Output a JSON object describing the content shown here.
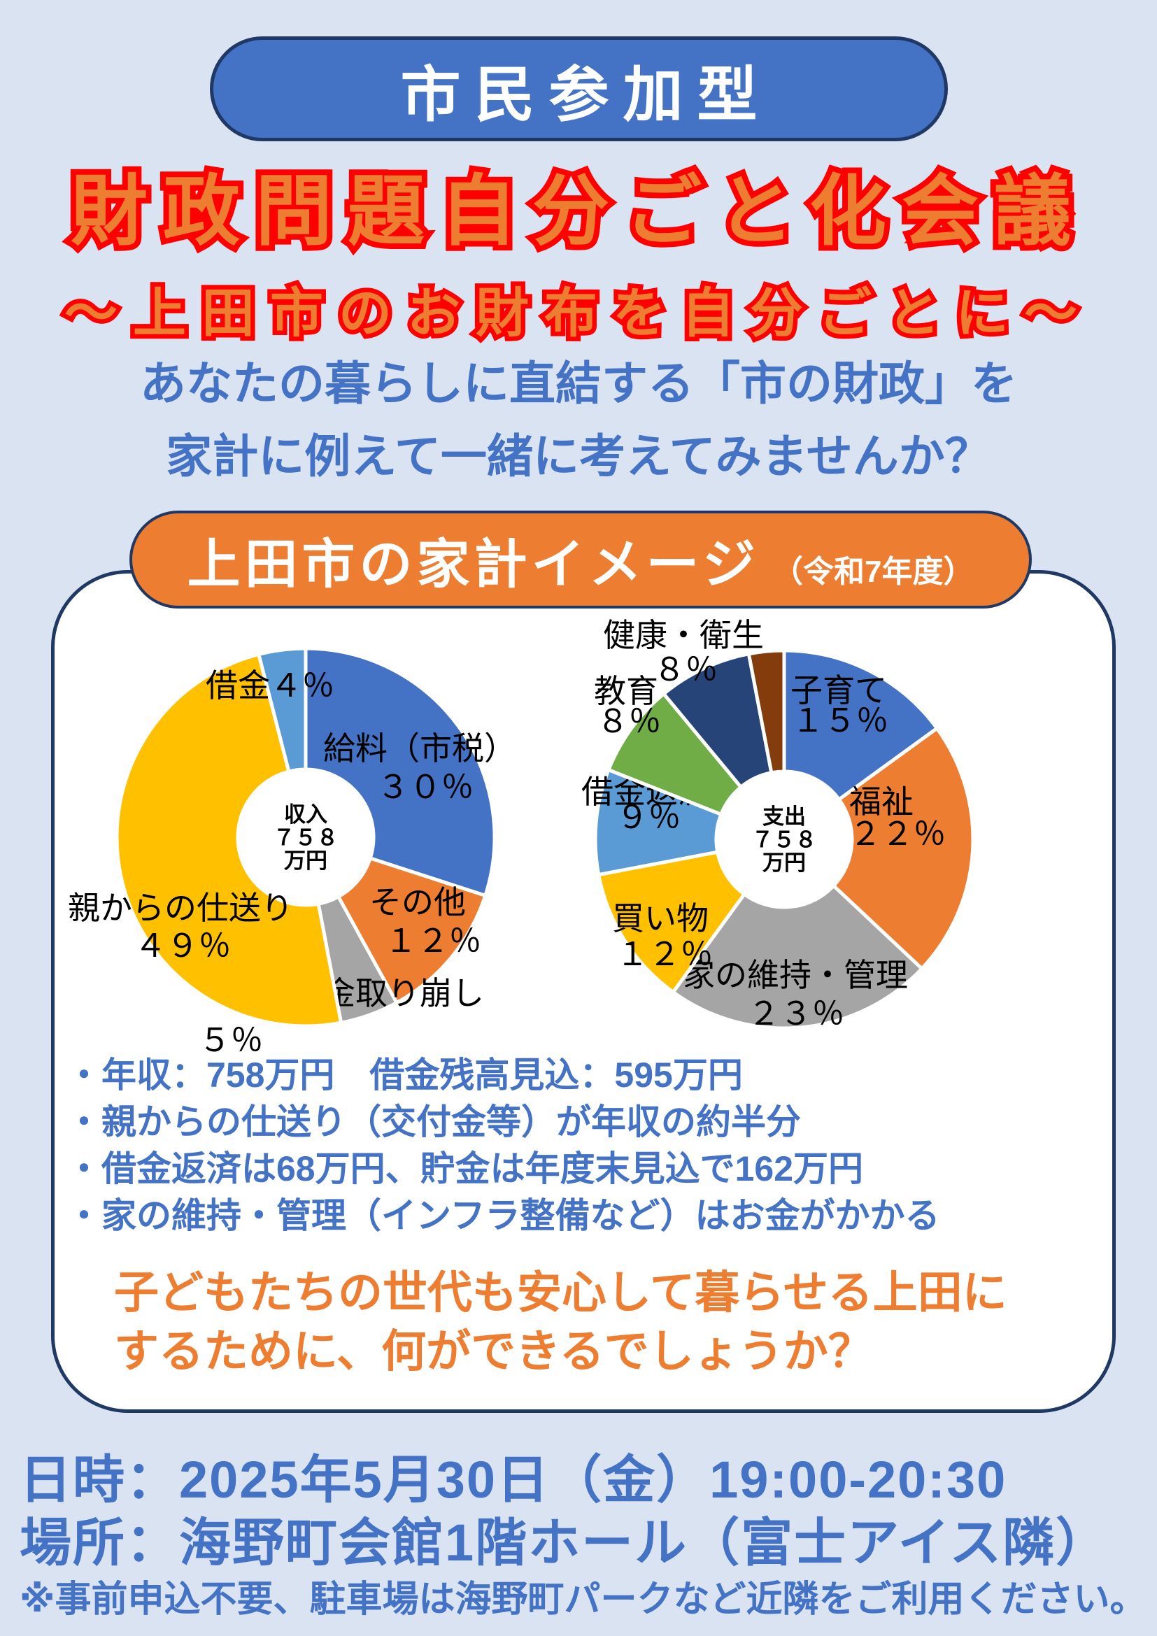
{
  "banner": {
    "label": "市民参加型"
  },
  "title": {
    "main": "財政問題自分ごと化会議",
    "subtitle": "～上田市のお財布を自分ごとに～"
  },
  "intro": {
    "line1": "あなたの暮らしに直結する「市の財政」を",
    "line2": "家計に例えて一緒に考えてみませんか？"
  },
  "panel": {
    "header": {
      "title": "上田市の家計イメージ",
      "note": "（令和7年度）"
    },
    "bullets": [
      "・年収：758万円　借金残高見込：595万円",
      "・親からの仕送り（交付金等）が年収の約半分",
      "・借金返済は68万円、貯金は年度末見込で162万円",
      "・家の維持・管理（インフラ整備など）はお金がかかる"
    ],
    "question": {
      "line1": "子どもたちの世代も安心して暮らせる上田に",
      "line2": "するために、何ができるでしょうか？"
    }
  },
  "chart_data": [
    {
      "type": "pie",
      "subtype": "donut",
      "name": "income",
      "title": "収入758万円",
      "center_label": [
        "収入",
        "７５８",
        "万円"
      ],
      "unit": "%",
      "start_angle_deg": 0,
      "direction": "clockwise",
      "legend": "none",
      "data_labels": "outside",
      "slices": [
        {
          "label": "給料（市税）",
          "value": 30,
          "color": "#4472C4",
          "label_lines": [
            "給料（市税）",
            "３０％"
          ]
        },
        {
          "label": "その他",
          "value": 12,
          "color": "#ED7D31",
          "label_lines": [
            "その他",
            "１２％"
          ]
        },
        {
          "label": "貯金取り崩し",
          "value": 5,
          "color": "#A5A5A5",
          "label_lines": [
            "貯金取り崩し",
            "５％"
          ]
        },
        {
          "label": "親からの仕送り",
          "value": 49,
          "color": "#FFC000",
          "label_lines": [
            "親からの仕送り",
            "４９％"
          ]
        },
        {
          "label": "借金",
          "value": 4,
          "color": "#5B9BD5",
          "label_lines": [
            "借金４％"
          ]
        }
      ]
    },
    {
      "type": "pie",
      "subtype": "donut",
      "name": "expense",
      "title": "支出758万円",
      "center_label": [
        "支出",
        "７５８",
        "万円"
      ],
      "unit": "%",
      "start_angle_deg": 0,
      "direction": "clockwise",
      "legend": "none",
      "data_labels": "outside",
      "slices": [
        {
          "label": "子育て",
          "value": 15,
          "color": "#4472C4",
          "label_lines": [
            "子育て",
            "１５％"
          ]
        },
        {
          "label": "福祉",
          "value": 22,
          "color": "#ED7D31",
          "label_lines": [
            "福祉",
            "２２％"
          ]
        },
        {
          "label": "家の維持・管理",
          "value": 23,
          "color": "#A5A5A5",
          "label_lines": [
            "家の維持・管理",
            "２３％"
          ]
        },
        {
          "label": "買い物",
          "value": 12,
          "color": "#FFC000",
          "label_lines": [
            "買い物",
            "１２％"
          ]
        },
        {
          "label": "借金返済",
          "value": 9,
          "color": "#5B9BD5",
          "label_lines": [
            "借金返済",
            "９％"
          ]
        },
        {
          "label": "教育",
          "value": 8,
          "color": "#70AD47",
          "label_lines": [
            "教育",
            "８％"
          ]
        },
        {
          "label": "健康・衛生",
          "value": 8,
          "color": "#264478",
          "label_lines": [
            "健康・衛生",
            "８％"
          ]
        },
        {
          "label": "",
          "value": 3,
          "color": "#843C0C",
          "label_lines": []
        }
      ]
    }
  ],
  "footer": {
    "datetime": "日時：2025年5月30日（金）19:00-20:30",
    "place": "場所：海野町会館1階ホール（富士アイス隣）",
    "note": "※事前申込不要、駐車場は海野町パークなど近隣をご利用ください。"
  },
  "colors": {
    "page_bg": "#D9E3F1",
    "accent_blue": "#4472C4",
    "accent_orange": "#ED7D31",
    "outline_red": "#FF0000",
    "border_navy": "#1F3864",
    "panel_bg": "#FFFFFF"
  }
}
